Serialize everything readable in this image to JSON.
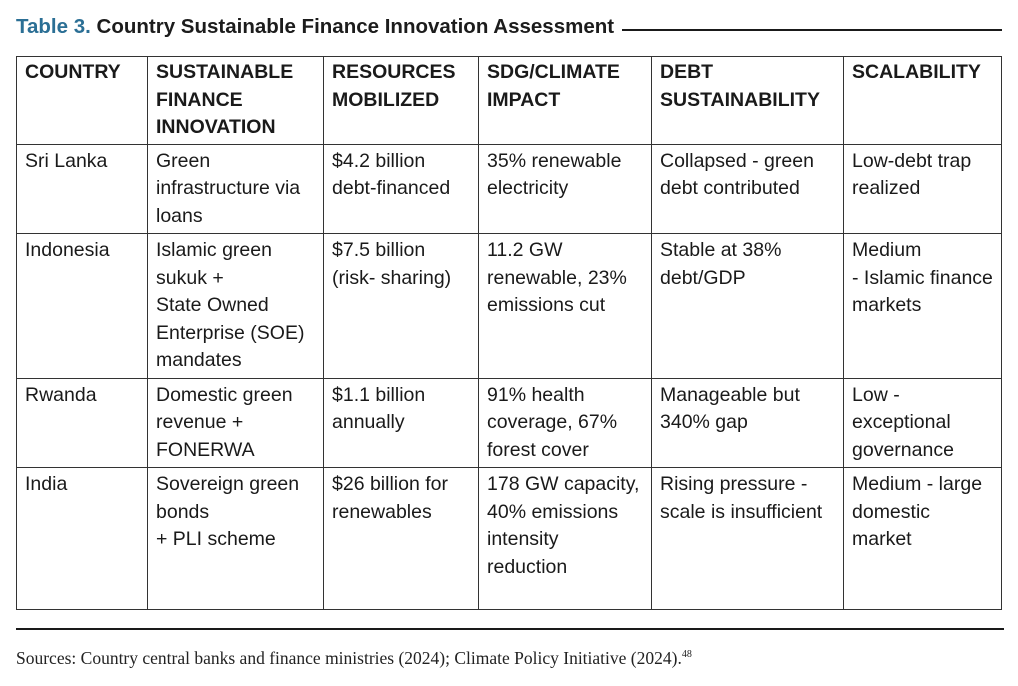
{
  "title": {
    "label": "Table 3.",
    "text": "Country Sustainable Finance Innovation Assessment"
  },
  "table": {
    "headers": [
      "COUNTRY",
      "SUSTAINABLE FINANCE INNOVATION",
      "RESOURCES MOBILIZED",
      "SDG/CLIMATE IMPACT",
      "DEBT SUSTAINABILITY",
      "SCALABILITY"
    ],
    "rows": [
      {
        "country": "Sri Lanka",
        "innovation": "Green infrastructure via loans",
        "resources": "$4.2 billion debt-financed",
        "impact": "35% renewable electricity",
        "debt": "Collapsed - green debt contributed",
        "scalability": "Low-debt trap realized"
      },
      {
        "country": "Indonesia",
        "innovation": "Islamic green sukuk + State Owned Enterprise (SOE) mandates",
        "resources": "$7.5 billion (risk- sharing)",
        "impact": "11.2 GW renewable, 23% emissions cut",
        "debt": "Stable at 38% debt/GDP",
        "scalability": "Medium - Islamic finance markets"
      },
      {
        "country": "Rwanda",
        "innovation": "Domestic green revenue + FONERWA",
        "resources": "$1.1 billion annually",
        "impact": "91% health coverage, 67% forest cover",
        "debt": "Manageable but 340% gap",
        "scalability": "Low - exceptional governance"
      },
      {
        "country": "India",
        "innovation": "Sovereign green bonds + PLI scheme",
        "resources": "$26 billion for renewables",
        "impact": "178 GW capacity, 40% emissions intensity reduction",
        "debt": "Rising pressure - scale is insufficient",
        "scalability": "Medium - large domestic market"
      }
    ]
  },
  "sources": {
    "text": "Sources: Country central banks and finance ministries (2024); Climate Policy Initiative (2024).",
    "footnote": "48"
  }
}
